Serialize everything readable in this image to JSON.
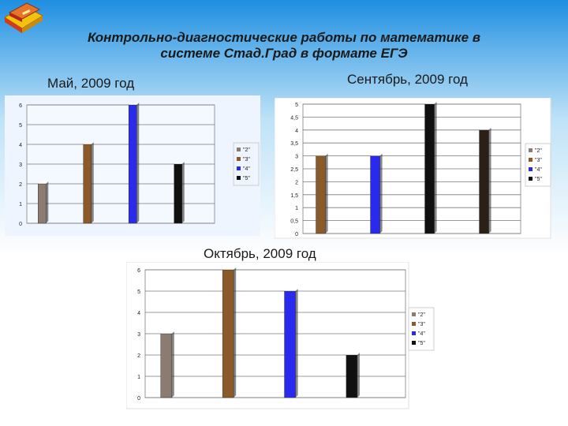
{
  "title_line1": "Контрольно-диагностические работы по математике в",
  "title_line2": "системе Стад.Град в формате ЕГЭ",
  "colors": {
    "grade2": "#8c7b70",
    "grade3": "#8b5a2b",
    "grade4": "#2a2aee",
    "grade5": "#101010",
    "grade5_oct": "#2a2016"
  },
  "chart_data": [
    {
      "type": "bar",
      "title": "Май, 2009 год",
      "categories": [
        "\"2\"",
        "\"3\"",
        "\"4\"",
        "\"5\""
      ],
      "series": [
        {
          "values": [
            2,
            4,
            6,
            3
          ]
        }
      ],
      "legend": [
        "\"2\"",
        "\"3\"",
        "\"4\"",
        "\"5\""
      ],
      "yticks": [
        "0",
        "1",
        "2",
        "3",
        "4",
        "5",
        "6"
      ],
      "ylim": [
        0,
        6
      ],
      "grid": true,
      "legend_position": "right"
    },
    {
      "type": "bar",
      "title": "Сентябрь, 2009 год",
      "categories": [
        "\"2\"",
        "\"3\"",
        "\"4\"",
        "\"5\""
      ],
      "series": [
        {
          "values": [
            3,
            3,
            5,
            4
          ]
        }
      ],
      "legend": [
        "\"2\"",
        "\"3\"",
        "\"4\"",
        "\"5\""
      ],
      "yticks": [
        "0",
        "0,5",
        "1",
        "1,5",
        "2",
        "2,5",
        "3",
        "3,5",
        "4",
        "4,5",
        "5"
      ],
      "ylim": [
        0,
        5
      ],
      "grid": true,
      "legend_position": "right"
    },
    {
      "type": "bar",
      "title": "Октябрь, 2009 год",
      "categories": [
        "\"2\"",
        "\"3\"",
        "\"4\"",
        "\"5\""
      ],
      "series": [
        {
          "values": [
            3,
            6,
            5,
            2
          ]
        }
      ],
      "legend": [
        "\"2\"",
        "\"3\"",
        "\"4\"",
        "\"5\""
      ],
      "yticks": [
        "0",
        "1",
        "2",
        "3",
        "4",
        "5",
        "6"
      ],
      "ylim": [
        0,
        6
      ],
      "grid": true,
      "legend_position": "right"
    }
  ]
}
